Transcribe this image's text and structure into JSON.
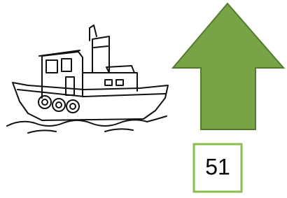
{
  "counter": {
    "text": "51"
  }
}
